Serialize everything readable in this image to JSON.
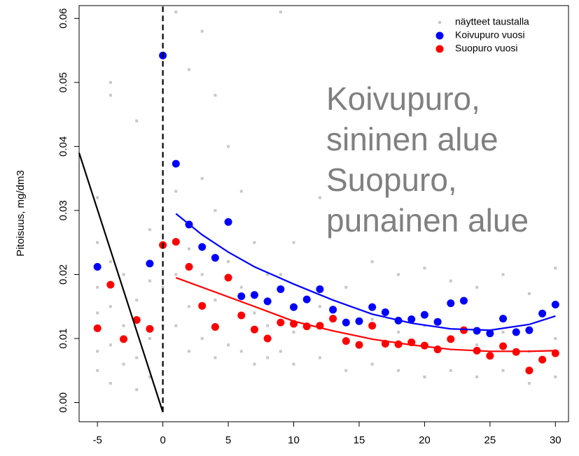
{
  "chart_data": {
    "type": "scatter",
    "y_label": "Pitoisuus, mg/dm3",
    "annotations": [
      "Koivupuro,",
      "sininen alue",
      "Suopuro,",
      "punainen alue"
    ],
    "annotation_color": "#808080",
    "xlim": [
      -6.4,
      31
    ],
    "ylim": [
      -0.003,
      0.062
    ],
    "xticks": [
      -5,
      0,
      5,
      10,
      15,
      20,
      25,
      30
    ],
    "yticks": [
      {
        "value": 0,
        "label": "0.00"
      },
      {
        "value": 0.01,
        "label": "0.01"
      },
      {
        "value": 0.02,
        "label": "0.02"
      },
      {
        "value": 0.03,
        "label": "0.03"
      },
      {
        "value": 0.04,
        "label": "0.04"
      },
      {
        "value": 0.05,
        "label": "0.05"
      },
      {
        "value": 0.06,
        "label": "0.06"
      }
    ],
    "legend": "top-right",
    "series": [
      {
        "name": "näytteet taustalla",
        "color": "#c8c8c8",
        "marker": "square",
        "x": [
          -5,
          -5,
          -5,
          -5,
          -5,
          -5,
          -4,
          -4,
          -4,
          -4,
          -4,
          -4,
          -3,
          -3,
          -3,
          -2,
          -2,
          -2,
          -2,
          -1,
          -1,
          -1,
          -1,
          0,
          0,
          0,
          1,
          1,
          1,
          1,
          2,
          2,
          2,
          2,
          3,
          3,
          3,
          3,
          4,
          4,
          4,
          4,
          5,
          5,
          5,
          6,
          6,
          6,
          7,
          7,
          7,
          8,
          8,
          8,
          9,
          9,
          9,
          10,
          10,
          10,
          12,
          12,
          12,
          14,
          14,
          14,
          16,
          16,
          16,
          18,
          18,
          18,
          20,
          20,
          20,
          22,
          22,
          22,
          24,
          24,
          24,
          26,
          26,
          26,
          28,
          28,
          28,
          30,
          30,
          30
        ],
        "values": [
          0.005,
          0.008,
          0.014,
          0.018,
          0.025,
          0.032,
          0.003,
          0.009,
          0.015,
          0.022,
          0.048,
          0.05,
          0.006,
          0.012,
          0.02,
          0.002,
          0.007,
          0.016,
          0.044,
          0.004,
          0.01,
          0.019,
          0.027,
          0.012,
          0.018,
          0.03,
          0.012,
          0.02,
          0.033,
          0.061,
          0.008,
          0.015,
          0.024,
          0.052,
          0.01,
          0.02,
          0.035,
          0.058,
          0.007,
          0.016,
          0.03,
          0.048,
          0.009,
          0.022,
          0.04,
          0.008,
          0.018,
          0.033,
          0.006,
          0.014,
          0.025,
          0.007,
          0.012,
          0.02,
          0.008,
          0.02,
          0.061,
          0.006,
          0.011,
          0.025,
          0.007,
          0.015,
          0.032,
          0.005,
          0.01,
          0.018,
          0.006,
          0.013,
          0.022,
          0.005,
          0.011,
          0.02,
          0.004,
          0.012,
          0.021,
          0.005,
          0.01,
          0.019,
          0.004,
          0.009,
          0.018,
          0.005,
          0.011,
          0.02,
          0.003,
          0.008,
          0.017,
          0.004,
          0.01,
          0.021
        ]
      },
      {
        "name": "Koivupuro vuosi",
        "color": "#0000ff",
        "marker": "circle",
        "x": [
          -5,
          -1,
          0,
          1,
          2,
          3,
          4,
          5,
          6,
          7,
          8,
          9,
          10,
          11,
          12,
          13,
          14,
          15,
          16,
          17,
          18,
          19,
          20,
          21,
          22,
          23,
          24,
          25,
          26,
          27,
          28,
          29,
          30
        ],
        "values": [
          0.0212,
          0.0217,
          0.0542,
          0.0373,
          0.0278,
          0.0243,
          0.0226,
          0.0282,
          0.0166,
          0.0168,
          0.0158,
          0.0177,
          0.0149,
          0.0161,
          0.0177,
          0.0145,
          0.0125,
          0.0127,
          0.0149,
          0.0141,
          0.0128,
          0.013,
          0.0137,
          0.0126,
          0.0155,
          0.0159,
          0.0112,
          0.0108,
          0.0131,
          0.011,
          0.0113,
          0.0139,
          0.0153
        ]
      },
      {
        "name": "Suopuro vuosi",
        "color": "#ff0000",
        "marker": "circle",
        "x": [
          -5,
          -4,
          -3,
          -2,
          -1,
          0,
          1,
          2,
          3,
          4,
          5,
          6,
          7,
          8,
          9,
          10,
          11,
          12,
          13,
          14,
          15,
          16,
          17,
          18,
          19,
          20,
          21,
          22,
          23,
          24,
          25,
          26,
          27,
          28,
          29,
          30
        ],
        "values": [
          0.0116,
          0.0184,
          0.0099,
          0.0129,
          0.0115,
          0.0246,
          0.0251,
          0.0212,
          0.0151,
          0.0118,
          0.0195,
          0.0136,
          0.0114,
          0.01,
          0.0125,
          0.0123,
          0.0119,
          0.012,
          0.0131,
          0.0096,
          0.009,
          0.012,
          0.0092,
          0.0091,
          0.0094,
          0.0089,
          0.0083,
          0.0099,
          0.0113,
          0.0081,
          0.0073,
          0.0088,
          0.0079,
          0.005,
          0.0067,
          0.0077
        ]
      }
    ],
    "lines": [
      {
        "color": "#0000ff",
        "x": [
          1,
          3,
          5,
          7,
          10,
          13,
          16,
          19,
          22,
          25,
          28,
          30
        ],
        "values": [
          0.0295,
          0.0262,
          0.0235,
          0.0212,
          0.0185,
          0.016,
          0.0138,
          0.0124,
          0.0115,
          0.0113,
          0.0122,
          0.0135
        ]
      },
      {
        "color": "#ff0000",
        "x": [
          1,
          3,
          5,
          7,
          10,
          13,
          16,
          19,
          22,
          25,
          28,
          30
        ],
        "values": [
          0.0195,
          0.018,
          0.0165,
          0.015,
          0.0127,
          0.0112,
          0.0099,
          0.009,
          0.0083,
          0.008,
          0.008,
          0.0081
        ]
      },
      {
        "color": "#000000",
        "x": [
          -6.4,
          0
        ],
        "values": [
          0.039,
          -0.0015
        ]
      },
      {
        "color": "#000000",
        "dashed": true,
        "x": [
          0,
          0
        ],
        "values": [
          -0.0015,
          0.062
        ]
      }
    ]
  }
}
